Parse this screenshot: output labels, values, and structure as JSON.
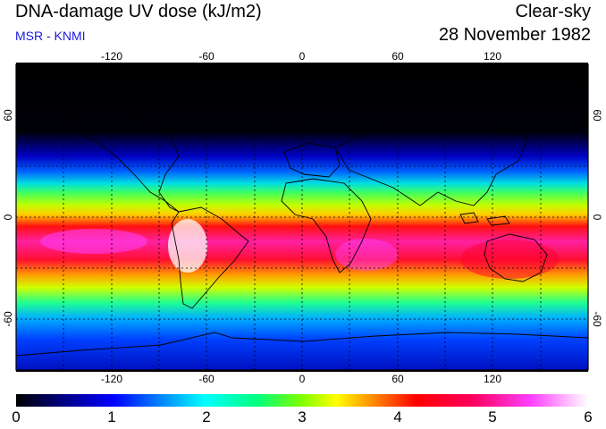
{
  "header": {
    "title": "DNA-damage UV dose (kJ/m2)",
    "subtitle": "MSR - KNMI",
    "mode": "Clear-sky",
    "date": "28 November 1982"
  },
  "map": {
    "lon_ticks": [
      "-120",
      "-60",
      "0",
      "60",
      "120"
    ],
    "lat_ticks": [
      "60",
      "0",
      "-60"
    ],
    "lon_range": [
      -180,
      180
    ],
    "lat_range": [
      -90,
      90
    ],
    "grid": true
  },
  "colorbar": {
    "labels": [
      "0",
      "1",
      "2",
      "3",
      "4",
      "5",
      "6"
    ],
    "min": 0,
    "max": 6,
    "colors": [
      "#000000",
      "#0000a0",
      "#0040ff",
      "#00c0ff",
      "#00ff80",
      "#80ff00",
      "#ffff00",
      "#ff8000",
      "#ff0000",
      "#ff0080",
      "#ff40ff",
      "#ffffff"
    ]
  }
}
